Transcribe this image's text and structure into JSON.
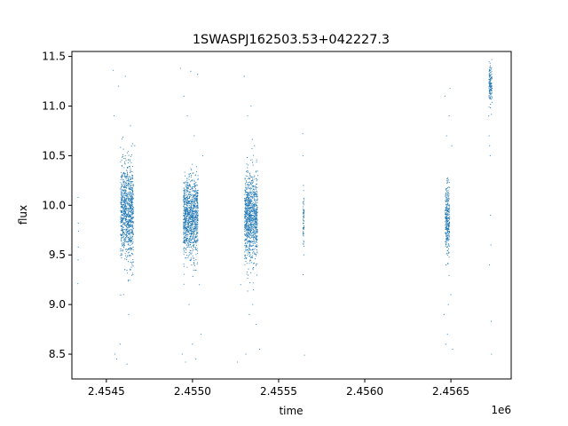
{
  "chart_data": {
    "type": "scatter",
    "title": "1SWASPJ162503.53+042227.3",
    "xlabel": "time",
    "ylabel": "flux",
    "x_offset_label": "1e6",
    "xlim": [
      2454300,
      2456850
    ],
    "ylim": [
      8.25,
      11.55
    ],
    "grid": false,
    "point_color": "#1f77b4",
    "x_ticks": [
      {
        "value": 2454500,
        "label": "2.4545"
      },
      {
        "value": 2455000,
        "label": "2.4550"
      },
      {
        "value": 2455500,
        "label": "2.4555"
      },
      {
        "value": 2456000,
        "label": "2.4560"
      },
      {
        "value": 2456500,
        "label": "2.4565"
      }
    ],
    "y_ticks": [
      {
        "value": 8.5,
        "label": "8.5"
      },
      {
        "value": 9.0,
        "label": "9.0"
      },
      {
        "value": 9.5,
        "label": "9.5"
      },
      {
        "value": 10.0,
        "label": "10.0"
      },
      {
        "value": 10.5,
        "label": "10.5"
      },
      {
        "value": 11.0,
        "label": "11.0"
      },
      {
        "value": 11.5,
        "label": "11.5"
      }
    ],
    "series": [
      {
        "points": [
          [
            2454335,
            9.21
          ],
          [
            2454336,
            9.45
          ],
          [
            2454337,
            9.82
          ],
          [
            2454338,
            9.74
          ],
          [
            2454336,
            10.08
          ],
          [
            2454337,
            9.58
          ],
          [
            2454540,
            11.36
          ],
          [
            2454545,
            10.9
          ],
          [
            2454550,
            8.5
          ],
          [
            2454560,
            8.45
          ],
          [
            2454570,
            11.2
          ],
          [
            2454580,
            8.6
          ],
          [
            2454590,
            10.4
          ],
          [
            2454600,
            9.1
          ],
          [
            2454610,
            11.3
          ],
          [
            2454620,
            8.4
          ],
          [
            2454630,
            8.9
          ],
          [
            2454640,
            10.8
          ],
          [
            2454655,
            9.3
          ],
          [
            2454665,
            10.6
          ],
          [
            2454930,
            11.38
          ],
          [
            2454940,
            8.5
          ],
          [
            2454950,
            11.1
          ],
          [
            2454960,
            8.42
          ],
          [
            2454970,
            10.9
          ],
          [
            2454980,
            9.0
          ],
          [
            2454990,
            11.35
          ],
          [
            2455000,
            8.6
          ],
          [
            2455010,
            10.7
          ],
          [
            2455020,
            8.45
          ],
          [
            2455030,
            11.32
          ],
          [
            2455040,
            9.2
          ],
          [
            2455050,
            8.7
          ],
          [
            2455060,
            10.5
          ],
          [
            2455260,
            8.42
          ],
          [
            2455280,
            9.2
          ],
          [
            2455300,
            11.3
          ],
          [
            2455310,
            8.5
          ],
          [
            2455320,
            10.9
          ],
          [
            2455330,
            8.9
          ],
          [
            2455340,
            11.0
          ],
          [
            2455350,
            9.0
          ],
          [
            2455360,
            10.6
          ],
          [
            2455370,
            8.8
          ],
          [
            2455380,
            10.3
          ],
          [
            2455390,
            8.55
          ],
          [
            2455640,
            10.72
          ],
          [
            2455642,
            9.3
          ],
          [
            2455644,
            10.2
          ],
          [
            2455646,
            9.5
          ],
          [
            2455641,
            10.5
          ],
          [
            2455643,
            9.7
          ],
          [
            2455650,
            8.49
          ],
          [
            2456460,
            8.9
          ],
          [
            2456465,
            11.1
          ],
          [
            2456470,
            8.6
          ],
          [
            2456475,
            10.7
          ],
          [
            2456480,
            8.7
          ],
          [
            2456485,
            9.0
          ],
          [
            2456490,
            10.9
          ],
          [
            2456495,
            11.18
          ],
          [
            2456500,
            9.1
          ],
          [
            2456505,
            10.6
          ],
          [
            2456510,
            8.55
          ],
          [
            2456720,
            10.9
          ],
          [
            2456722,
            10.7
          ],
          [
            2456725,
            10.6
          ],
          [
            2456728,
            10.5
          ],
          [
            2456730,
            9.9
          ],
          [
            2456732,
            9.6
          ],
          [
            2456734,
            8.83
          ],
          [
            2456736,
            8.5
          ],
          [
            2456724,
            9.4
          ]
        ],
        "clusters": [
          {
            "x_center": 2454620,
            "x_width": 75,
            "y_center": 9.93,
            "y_sd": 0.24,
            "count": 950
          },
          {
            "x_center": 2454990,
            "x_width": 85,
            "y_center": 9.87,
            "y_sd": 0.2,
            "count": 1050
          },
          {
            "x_center": 2455340,
            "x_width": 75,
            "y_center": 9.88,
            "y_sd": 0.22,
            "count": 1000
          },
          {
            "x_center": 2455645,
            "x_width": 6,
            "y_center": 9.85,
            "y_sd": 0.12,
            "count": 60
          },
          {
            "x_center": 2456480,
            "x_width": 25,
            "y_center": 9.85,
            "y_sd": 0.18,
            "count": 300
          },
          {
            "x_center": 2456730,
            "x_width": 18,
            "y_center": 11.22,
            "y_sd": 0.1,
            "count": 140
          }
        ]
      }
    ]
  }
}
